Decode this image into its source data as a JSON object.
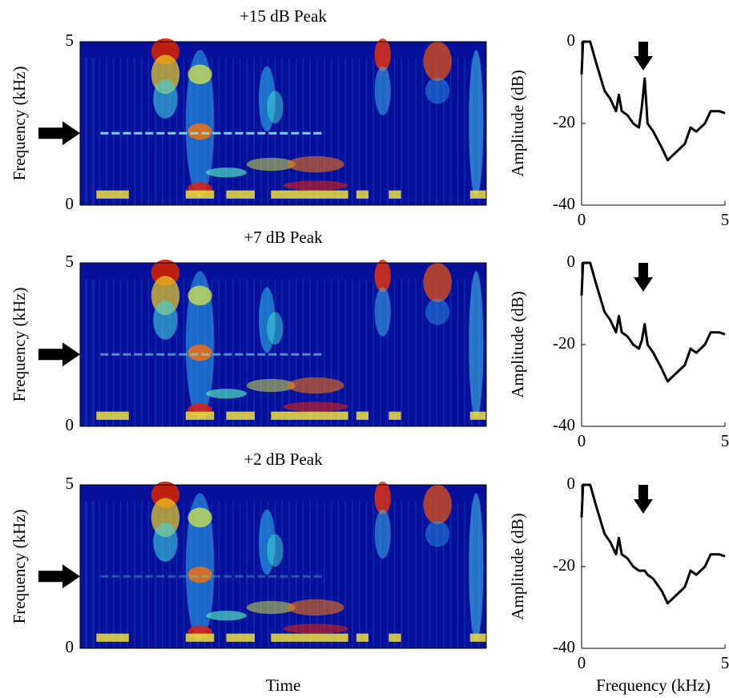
{
  "chart_data": [
    {
      "type": "spectrogram",
      "title": "+15 dB Peak",
      "ylabel": "Frequency (kHz)",
      "ylim": [
        0,
        5
      ],
      "yticks": [
        0,
        5
      ]
    },
    {
      "type": "line",
      "ylabel": "Amplitude (dB)",
      "xlim": [
        0,
        5
      ],
      "xticks": [
        0,
        5
      ],
      "ylim": [
        -40,
        0
      ],
      "yticks": [
        -40,
        -20,
        0
      ],
      "color": "#000000",
      "x": [
        0,
        0.05,
        0.3,
        0.5,
        0.8,
        1.0,
        1.2,
        1.3,
        1.4,
        1.6,
        1.8,
        2.0,
        2.1,
        2.2,
        2.3,
        2.5,
        2.8,
        3.0,
        3.3,
        3.6,
        3.8,
        4.0,
        4.3,
        4.5,
        4.8,
        5.0
      ],
      "values": [
        -8,
        0,
        0,
        -5,
        -12,
        -14,
        -17,
        -13,
        -17,
        -18,
        -20,
        -21,
        -16,
        -9,
        -20,
        -22,
        -26,
        -29,
        -27,
        -25,
        -21,
        -22,
        -20,
        -17,
        -17,
        -17.5
      ]
    },
    {
      "type": "spectrogram",
      "title": "+7 dB Peak",
      "ylabel": "Frequency (kHz)",
      "ylim": [
        0,
        5
      ],
      "yticks": [
        0,
        5
      ]
    },
    {
      "type": "line",
      "ylabel": "Amplitude (dB)",
      "xlim": [
        0,
        5
      ],
      "xticks": [
        0,
        5
      ],
      "ylim": [
        -40,
        0
      ],
      "yticks": [
        -40,
        -20,
        0
      ],
      "color": "#000000",
      "x": [
        0,
        0.05,
        0.3,
        0.5,
        0.8,
        1.0,
        1.2,
        1.3,
        1.4,
        1.6,
        1.8,
        2.0,
        2.1,
        2.2,
        2.3,
        2.5,
        2.8,
        3.0,
        3.3,
        3.6,
        3.8,
        4.0,
        4.3,
        4.5,
        4.8,
        5.0
      ],
      "values": [
        -8,
        0,
        0,
        -5,
        -12,
        -14,
        -17,
        -13,
        -17,
        -18,
        -20,
        -21,
        -19,
        -15,
        -20,
        -22,
        -26,
        -29,
        -27,
        -25,
        -21,
        -22,
        -20,
        -17,
        -17,
        -17.5
      ]
    },
    {
      "type": "spectrogram",
      "title": "+2 dB Peak",
      "ylabel": "Frequency (kHz)",
      "xlabel": "Time",
      "ylim": [
        0,
        5
      ],
      "yticks": [
        0,
        5
      ]
    },
    {
      "type": "line",
      "ylabel": "Amplitude (dB)",
      "xlabel": "Frequency (kHz)",
      "xlim": [
        0,
        5
      ],
      "xticks": [
        0,
        5
      ],
      "ylim": [
        -40,
        0
      ],
      "yticks": [
        -40,
        -20,
        0
      ],
      "color": "#000000",
      "x": [
        0,
        0.05,
        0.3,
        0.5,
        0.8,
        1.0,
        1.2,
        1.3,
        1.4,
        1.6,
        1.8,
        2.0,
        2.1,
        2.2,
        2.3,
        2.5,
        2.8,
        3.0,
        3.3,
        3.6,
        3.8,
        4.0,
        4.3,
        4.5,
        4.8,
        5.0
      ],
      "values": [
        -8,
        0,
        0,
        -5,
        -12,
        -14,
        -17,
        -13,
        -17,
        -18,
        -20,
        -21,
        -21,
        -21,
        -22,
        -23,
        -26,
        -29,
        -27,
        -25,
        -21,
        -22,
        -20,
        -17,
        -17,
        -17.5
      ]
    }
  ]
}
